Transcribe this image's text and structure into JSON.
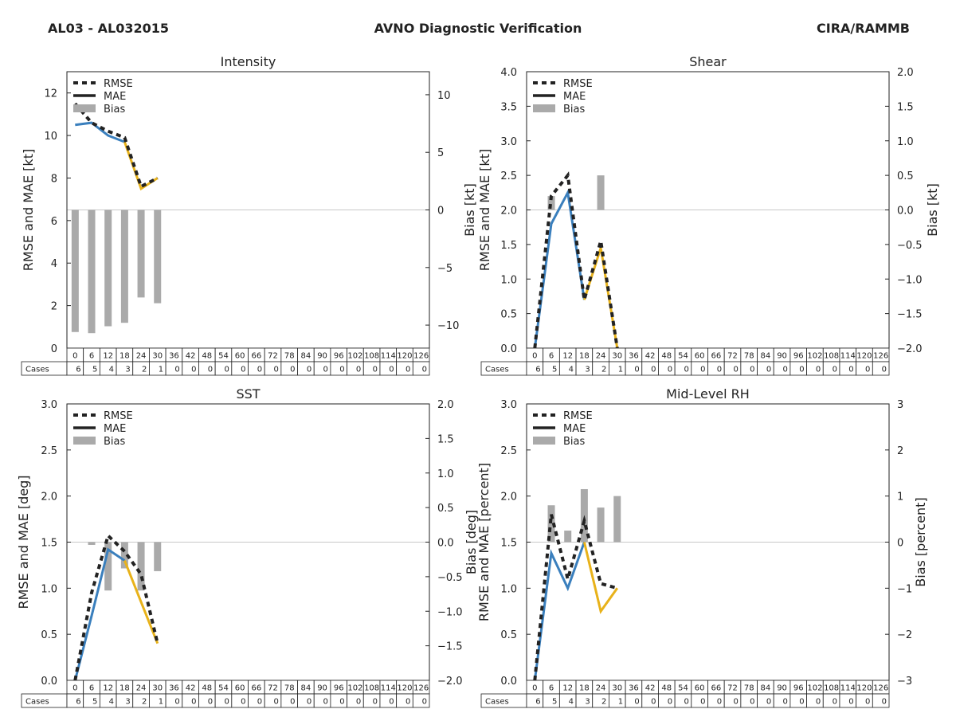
{
  "header": {
    "storm": "AL03 - AL032015",
    "title": "AVNO Diagnostic Verification",
    "org": "CIRA/RAMMB"
  },
  "colors": {
    "mae_early": "#3a7fbd",
    "mae_late": "#e8b21a",
    "rmse": "#222222",
    "bias": "#aaaaaa",
    "zero_line": "#c8c8c8",
    "frame": "#222222"
  },
  "legend": {
    "rmse": "RMSE",
    "mae": "MAE",
    "bias": "Bias"
  },
  "cases_label": "Cases",
  "forecast_hours": [
    "0",
    "6",
    "12",
    "18",
    "24",
    "30",
    "36",
    "42",
    "48",
    "54",
    "60",
    "66",
    "72",
    "78",
    "84",
    "90",
    "96",
    "102",
    "108",
    "114",
    "120",
    "126"
  ],
  "cases": [
    "6",
    "5",
    "4",
    "3",
    "2",
    "1",
    "0",
    "0",
    "0",
    "0",
    "0",
    "0",
    "0",
    "0",
    "0",
    "0",
    "0",
    "0",
    "0",
    "0",
    "0",
    "0"
  ],
  "chart_data": [
    {
      "type": "line",
      "title": "Intensity",
      "ylabel": "RMSE and MAE [kt]",
      "y2label": "Bias [kt]",
      "ylim": [
        0,
        13
      ],
      "yticks": [
        0,
        2,
        4,
        6,
        8,
        10,
        12
      ],
      "ytick_labels": [
        "0",
        "2",
        "4",
        "6",
        "8",
        "10",
        "12"
      ],
      "y2lim": [
        -12,
        12
      ],
      "y2ticks": [
        -10,
        -5,
        0,
        5,
        10
      ],
      "y2tick_labels": [
        "−10",
        "−5",
        "0",
        "5",
        "10"
      ],
      "x": [
        0,
        6,
        12,
        18,
        24,
        30
      ],
      "rmse": [
        11.5,
        10.6,
        10.2,
        9.9,
        7.6,
        8.0
      ],
      "mae": [
        10.5,
        10.6,
        10.0,
        9.7,
        7.5,
        8.0
      ],
      "bias": [
        -10.6,
        -10.7,
        -10.1,
        -9.8,
        -7.6,
        -8.1
      ]
    },
    {
      "type": "line",
      "title": "Shear",
      "ylabel": "RMSE and MAE [kt]",
      "y2label": "Bias [kt]",
      "ylim": [
        0,
        4
      ],
      "yticks": [
        0,
        0.5,
        1,
        1.5,
        2,
        2.5,
        3,
        3.5,
        4
      ],
      "ytick_labels": [
        "0.0",
        "0.5",
        "1.0",
        "1.5",
        "2.0",
        "2.5",
        "3.0",
        "3.5",
        "4.0"
      ],
      "y2lim": [
        -2,
        2
      ],
      "y2ticks": [
        -2,
        -1.5,
        -1,
        -0.5,
        0,
        0.5,
        1,
        1.5,
        2
      ],
      "y2tick_labels": [
        "−2.0",
        "−1.5",
        "−1.0",
        "−0.5",
        "0.0",
        "0.5",
        "1.0",
        "1.5",
        "2.0"
      ],
      "x": [
        0,
        6,
        12,
        18,
        24,
        30
      ],
      "rmse": [
        0.0,
        2.2,
        2.5,
        0.7,
        1.55,
        0.0
      ],
      "mae": [
        0.0,
        1.8,
        2.25,
        0.7,
        1.45,
        0.0
      ],
      "bias": [
        0.0,
        0.2,
        0.0,
        0.0,
        0.5,
        0.0
      ]
    },
    {
      "type": "line",
      "title": "SST",
      "ylabel": "RMSE and MAE [deg]",
      "y2label": "Bias [deg]",
      "ylim": [
        0,
        3
      ],
      "yticks": [
        0,
        0.5,
        1,
        1.5,
        2,
        2.5,
        3
      ],
      "ytick_labels": [
        "0.0",
        "0.5",
        "1.0",
        "1.5",
        "2.0",
        "2.5",
        "3.0"
      ],
      "y2lim": [
        -2,
        2
      ],
      "y2ticks": [
        -2,
        -1.5,
        -1,
        -0.5,
        0,
        0.5,
        1,
        1.5,
        2
      ],
      "y2tick_labels": [
        "−2.0",
        "−1.5",
        "−1.0",
        "−0.5",
        "0.0",
        "0.5",
        "1.0",
        "1.5",
        "2.0"
      ],
      "x": [
        0,
        6,
        12,
        18,
        24,
        30
      ],
      "rmse": [
        0.0,
        0.95,
        1.57,
        1.4,
        1.15,
        0.4
      ],
      "mae": [
        0.0,
        0.7,
        1.42,
        1.3,
        0.85,
        0.4
      ],
      "bias": [
        0.0,
        -0.04,
        -0.7,
        -0.38,
        -0.7,
        -0.42
      ]
    },
    {
      "type": "line",
      "title": "Mid-Level RH",
      "ylabel": "RMSE and MAE [percent]",
      "y2label": "Bias [percent]",
      "ylim": [
        0,
        3
      ],
      "yticks": [
        0,
        0.5,
        1,
        1.5,
        2,
        2.5,
        3
      ],
      "ytick_labels": [
        "0.0",
        "0.5",
        "1.0",
        "1.5",
        "2.0",
        "2.5",
        "3.0"
      ],
      "y2lim": [
        -3,
        3
      ],
      "y2ticks": [
        -3,
        -2,
        -1,
        0,
        1,
        2,
        3
      ],
      "y2tick_labels": [
        "−3",
        "−2",
        "−1",
        "0",
        "1",
        "2",
        "3"
      ],
      "x": [
        0,
        6,
        12,
        18,
        24,
        30
      ],
      "rmse": [
        0.0,
        1.8,
        1.1,
        1.73,
        1.05,
        1.0
      ],
      "mae": [
        0.0,
        1.38,
        1.0,
        1.5,
        0.75,
        1.0
      ],
      "bias": [
        0.0,
        0.8,
        0.25,
        1.15,
        0.75,
        1.0
      ]
    }
  ]
}
